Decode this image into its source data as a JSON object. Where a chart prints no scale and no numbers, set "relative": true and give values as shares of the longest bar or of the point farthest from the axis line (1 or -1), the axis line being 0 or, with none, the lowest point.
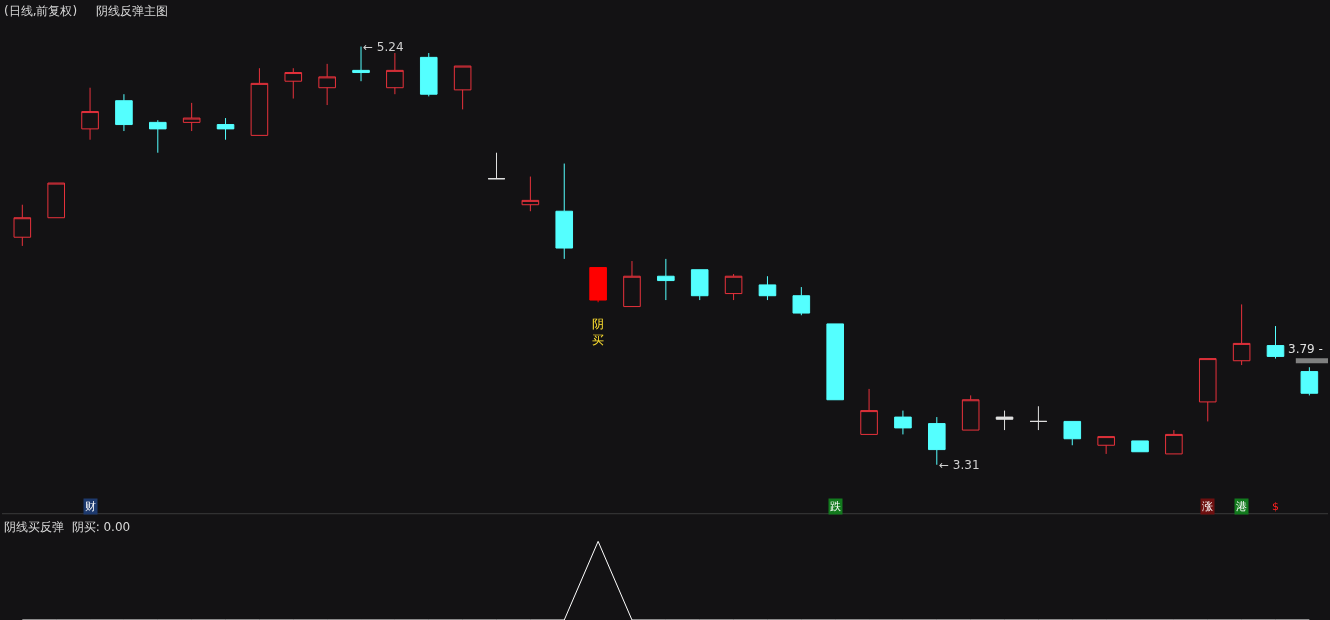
{
  "chart_data": [
    {
      "type": "candlestick",
      "title": "(日线,前复权)",
      "subtitle": "阴线反弹主图",
      "categories": [
        null,
        null,
        null,
        null,
        null,
        null,
        null,
        null,
        null,
        null,
        null,
        null,
        null,
        null,
        null,
        null,
        null,
        null,
        null,
        null,
        null,
        null,
        null,
        null,
        null,
        null,
        null,
        null,
        null,
        null,
        null,
        null,
        null,
        null,
        null,
        null,
        null,
        null,
        null
      ],
      "ohlc": [
        [
          4.36,
          4.51,
          4.32,
          4.45
        ],
        [
          4.45,
          4.61,
          4.45,
          4.61
        ],
        [
          4.86,
          5.05,
          4.81,
          4.94
        ],
        [
          4.99,
          5.02,
          4.85,
          4.88
        ],
        [
          4.89,
          4.9,
          4.75,
          4.86
        ],
        [
          4.89,
          4.98,
          4.85,
          4.91
        ],
        [
          4.88,
          4.91,
          4.81,
          4.86
        ],
        [
          4.83,
          5.14,
          4.83,
          5.07
        ],
        [
          5.08,
          5.14,
          5.0,
          5.12
        ],
        [
          5.05,
          5.16,
          4.97,
          5.1
        ],
        [
          5.13,
          5.24,
          5.08,
          5.12
        ],
        [
          5.05,
          5.21,
          5.02,
          5.13
        ],
        [
          5.19,
          5.21,
          5.01,
          5.02
        ],
        [
          5.04,
          5.15,
          4.95,
          5.15
        ],
        [
          4.63,
          4.75,
          4.63,
          4.63
        ],
        [
          4.51,
          4.64,
          4.48,
          4.53
        ],
        [
          4.48,
          4.7,
          4.26,
          4.31
        ],
        [
          4.22,
          4.22,
          4.06,
          4.07
        ],
        [
          4.04,
          4.25,
          4.04,
          4.18
        ],
        [
          4.18,
          4.26,
          4.07,
          4.16
        ],
        [
          4.21,
          4.21,
          4.07,
          4.09
        ],
        [
          4.1,
          4.19,
          4.07,
          4.18
        ],
        [
          4.14,
          4.18,
          4.07,
          4.09
        ],
        [
          4.09,
          4.13,
          4.0,
          4.01
        ],
        [
          3.96,
          3.96,
          3.61,
          3.61
        ],
        [
          3.45,
          3.66,
          3.45,
          3.56
        ],
        [
          3.53,
          3.56,
          3.45,
          3.48
        ],
        [
          3.5,
          3.53,
          3.31,
          3.38
        ],
        [
          3.47,
          3.63,
          3.47,
          3.61
        ],
        [
          3.53,
          3.56,
          3.47,
          3.52
        ],
        [
          3.51,
          3.58,
          3.47,
          3.51
        ],
        [
          3.51,
          3.51,
          3.4,
          3.43
        ],
        [
          3.4,
          3.44,
          3.36,
          3.44
        ],
        [
          3.42,
          3.42,
          3.37,
          3.37
        ],
        [
          3.36,
          3.47,
          3.36,
          3.45
        ],
        [
          3.6,
          3.8,
          3.51,
          3.8
        ],
        [
          3.79,
          4.05,
          3.77,
          3.87
        ],
        [
          3.86,
          3.95,
          3.8,
          3.81
        ],
        [
          3.74,
          3.76,
          3.63,
          3.64
        ]
      ],
      "colors": [
        "#e8323c",
        "#e8323c",
        "#e8323c",
        "#54ffff",
        "#54ffff",
        "#e8323c",
        "#54ffff",
        "#e8323c",
        "#e8323c",
        "#e8323c",
        "#54ffff",
        "#e8323c",
        "#54ffff",
        "#e8323c",
        "#e0e0e0",
        "#e8323c",
        "#54ffff",
        "#ff0000",
        "#e8323c",
        "#54ffff",
        "#54ffff",
        "#e8323c",
        "#54ffff",
        "#54ffff",
        "#54ffff",
        "#e8323c",
        "#54ffff",
        "#54ffff",
        "#e8323c",
        "#e0e0e0",
        "#e0e0e0",
        "#54ffff",
        "#e8323c",
        "#54ffff",
        "#e8323c",
        "#e8323c",
        "#e8323c",
        "#54ffff",
        "#54ffff"
      ],
      "annotations": [
        "← 5.24",
        "← 3.31",
        "阴买",
        "财",
        "跌",
        "涨",
        "港",
        "$"
      ],
      "ref_lines": [
        {
          "axis": "y",
          "value": 3.79,
          "label": "3.79 -",
          "color": "#808080"
        }
      ]
    },
    {
      "type": "line",
      "title": "阴线买反弹",
      "relative": true,
      "color": "#ffffff",
      "categories": [
        null,
        null,
        null,
        null,
        null,
        null,
        null,
        null,
        null,
        null,
        null,
        null,
        null,
        null,
        null,
        null,
        null,
        null,
        null,
        null,
        null,
        null,
        null,
        null,
        null,
        null,
        null,
        null,
        null,
        null,
        null,
        null,
        null,
        null,
        null,
        null,
        null,
        null,
        null
      ],
      "values": [
        0,
        0,
        0,
        0,
        0,
        0,
        0,
        0,
        0,
        0,
        0,
        0,
        0,
        0,
        0,
        0,
        0,
        1,
        0,
        0,
        0,
        0,
        0,
        0,
        0,
        0,
        0,
        0,
        0,
        0,
        0,
        0,
        0,
        0,
        0,
        0,
        0,
        0,
        0
      ],
      "annotations": [
        "阴买: 0.00"
      ]
    }
  ]
}
